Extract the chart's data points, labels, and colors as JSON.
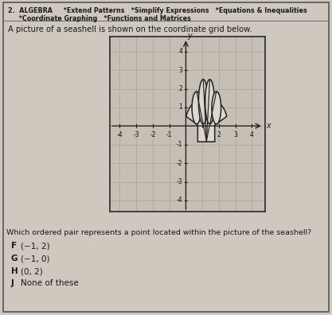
{
  "bg_color": "#cec8be",
  "box_bg": "#cec8be",
  "border_color": "#555555",
  "title_line1": "2.  ALGEBRA     *Extend Patterns   *Simplify Expressions   *Equations & Inequalities",
  "title_line2": "     *Coordinate Graphing   *Functions and Matrices",
  "subtitle": "A picture of a seashell is shown on the coordinate grid below.",
  "question": "Which ordered pair represents a point located within the picture of the seashell?",
  "choices": [
    [
      "F",
      "(−1, 2)"
    ],
    [
      "G",
      "(−1, 0)"
    ],
    [
      "H",
      "(0, 2)"
    ],
    [
      "J",
      "None of these"
    ]
  ],
  "grid_bg": "#c5bfb5",
  "grid_color": "#b0a898",
  "axis_color": "#222222",
  "shell_color": "#222222",
  "shell_fill": "#ddd8ce",
  "xlim": [
    -4.6,
    4.8
  ],
  "ylim": [
    -4.6,
    4.8
  ],
  "xticks": [
    -4,
    -3,
    -2,
    -1,
    1,
    2,
    3,
    4
  ],
  "yticks": [
    -4,
    -3,
    -2,
    -1,
    1,
    2,
    3,
    4
  ]
}
